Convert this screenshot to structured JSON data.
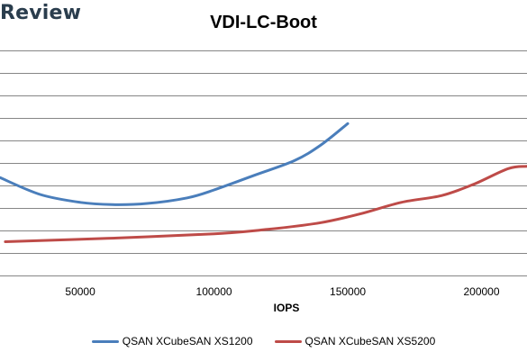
{
  "watermark": "Review",
  "chart_data": {
    "type": "line",
    "title": "VDI-LC-Boot",
    "xlabel": "IOPS",
    "ylabel": "",
    "xlim": [
      20000,
      217000
    ],
    "ylim": [
      0,
      100
    ],
    "x_ticks": [
      50000,
      100000,
      150000,
      200000
    ],
    "y_gridlines": [
      100,
      90,
      80,
      70,
      60,
      50,
      40,
      30,
      20,
      10,
      0
    ],
    "y_tick_labels_visible": false,
    "grid": "horizontal",
    "legend_position": "bottom",
    "series": [
      {
        "name": "QSAN XCubeSAN XS1200",
        "color": "#4a7ebb",
        "points": [
          [
            20000,
            43.5
          ],
          [
            35000,
            36.0
          ],
          [
            50000,
            32.5
          ],
          [
            62000,
            31.5
          ],
          [
            75000,
            32.0
          ],
          [
            90000,
            34.5
          ],
          [
            100000,
            38.0
          ],
          [
            115000,
            44.5
          ],
          [
            130000,
            51.0
          ],
          [
            140000,
            58.0
          ],
          [
            150000,
            67.5
          ]
        ]
      },
      {
        "name": "QSAN XCubeSAN XS5200",
        "color": "#be4b48",
        "points": [
          [
            22000,
            15.0
          ],
          [
            60000,
            16.5
          ],
          [
            100000,
            18.5
          ],
          [
            120000,
            20.5
          ],
          [
            140000,
            23.5
          ],
          [
            155000,
            27.5
          ],
          [
            170000,
            32.5
          ],
          [
            185000,
            35.5
          ],
          [
            197000,
            40.5
          ],
          [
            210000,
            47.5
          ],
          [
            217000,
            48.5
          ]
        ]
      }
    ]
  }
}
